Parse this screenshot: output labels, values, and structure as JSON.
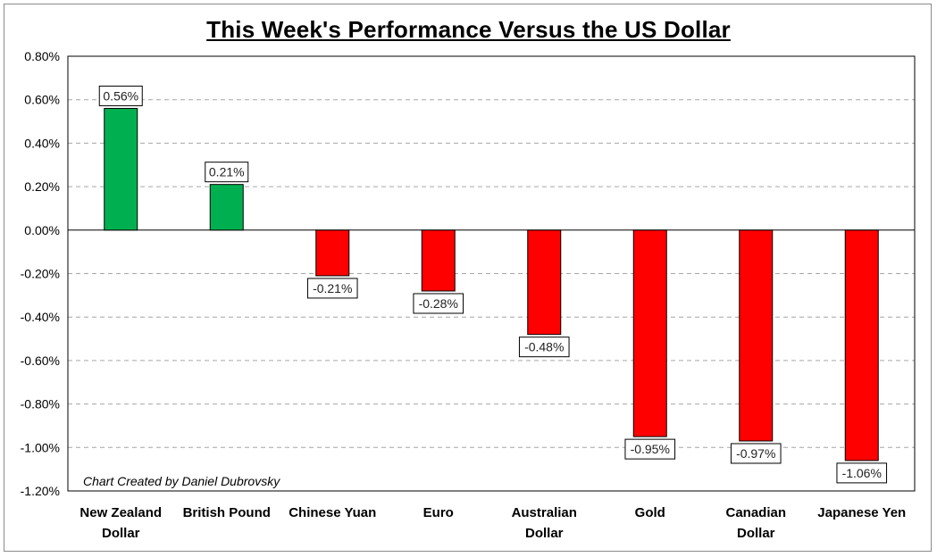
{
  "chart_data": {
    "type": "bar",
    "title": "This Week's Performance Versus the US Dollar",
    "categories": [
      [
        "New Zealand",
        "Dollar"
      ],
      [
        "British Pound"
      ],
      [
        "Chinese Yuan"
      ],
      [
        "Euro"
      ],
      [
        "Australian",
        "Dollar"
      ],
      [
        "Gold"
      ],
      [
        "Canadian",
        "Dollar"
      ],
      [
        "Japanese Yen"
      ]
    ],
    "values": [
      0.56,
      0.21,
      -0.21,
      -0.28,
      -0.48,
      -0.95,
      -0.97,
      -1.06
    ],
    "data_labels": [
      "0.56%",
      "0.21%",
      "-0.21%",
      "-0.28%",
      "-0.48%",
      "-0.95%",
      "-0.97%",
      "-1.06%"
    ],
    "ylim": [
      -1.2,
      0.8
    ],
    "yticks": [
      0.8,
      0.6,
      0.4,
      0.2,
      0.0,
      -0.2,
      -0.4,
      -0.6,
      -0.8,
      -1.0,
      -1.2
    ],
    "ytick_labels": [
      "0.80%",
      "0.60%",
      "0.40%",
      "0.20%",
      "0.00%",
      "-0.20%",
      "-0.40%",
      "-0.60%",
      "-0.80%",
      "-1.00%",
      "-1.20%"
    ],
    "grid": true,
    "positive_color": "#00b050",
    "negative_color": "#ff0000",
    "annotation": "Chart Created by Daniel Dubrovsky"
  }
}
